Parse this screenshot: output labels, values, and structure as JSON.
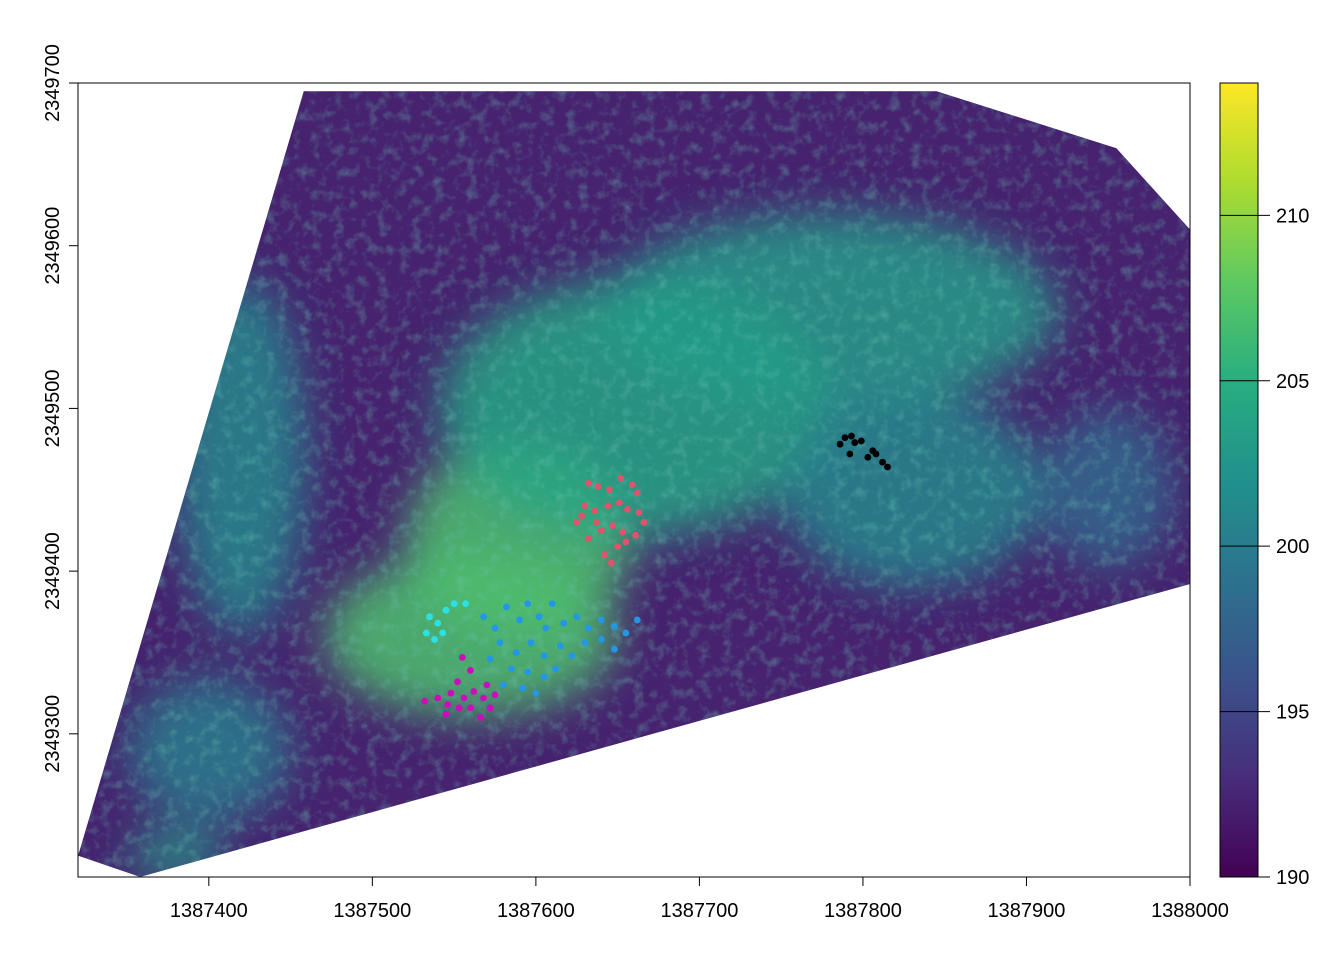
{
  "chart_data": {
    "type": "heatmap",
    "title": "",
    "xlabel": "",
    "ylabel": "",
    "xlim": [
      1387320,
      1388000
    ],
    "ylim": [
      2349212,
      2349700
    ],
    "x_ticks": [
      1387400,
      1387500,
      1387600,
      1387700,
      1387800,
      1387900,
      1388000
    ],
    "x_tick_labels": [
      "1387400",
      "1387500",
      "1387600",
      "1387700",
      "1387800",
      "1387900",
      "1388000"
    ],
    "y_ticks": [
      2349300,
      2349400,
      2349500,
      2349600,
      2349700
    ],
    "y_tick_labels": [
      "2349300",
      "2349400",
      "2349500",
      "2349600",
      "2349700"
    ],
    "grid": false,
    "colorbar": {
      "range": [
        190,
        214
      ],
      "ticks": [
        190,
        195,
        200,
        205,
        210
      ],
      "tick_labels": [
        "190",
        "195",
        "200",
        "205",
        "210"
      ],
      "colormap": "viridis",
      "placement": "right"
    },
    "raster_extent_polygon": [
      [
        1387320,
        2349225
      ],
      [
        1387458,
        2349695
      ],
      [
        1387845,
        2349695
      ],
      [
        1387955,
        2349660
      ],
      [
        1388000,
        2349610
      ],
      [
        1388000,
        2349392
      ],
      [
        1387358,
        2349212
      ]
    ],
    "height_regions": [
      {
        "x": 1387590,
        "y": 2349420,
        "rx": 70,
        "ry": 60,
        "value": 207
      },
      {
        "x": 1387560,
        "y": 2349360,
        "rx": 90,
        "ry": 50,
        "value": 207
      },
      {
        "x": 1387660,
        "y": 2349500,
        "rx": 120,
        "ry": 80,
        "value": 204
      },
      {
        "x": 1387780,
        "y": 2349560,
        "rx": 140,
        "ry": 60,
        "value": 203
      },
      {
        "x": 1387420,
        "y": 2349470,
        "rx": 40,
        "ry": 110,
        "value": 201
      },
      {
        "x": 1387830,
        "y": 2349450,
        "rx": 80,
        "ry": 60,
        "value": 201
      },
      {
        "x": 1387950,
        "y": 2349450,
        "rx": 40,
        "ry": 50,
        "value": 198
      },
      {
        "x": 1387400,
        "y": 2349290,
        "rx": 50,
        "ry": 45,
        "value": 200
      },
      {
        "x": 1387380,
        "y": 2349225,
        "rx": 30,
        "ry": 15,
        "value": 203
      }
    ],
    "series": [
      {
        "color": "#000000",
        "points": [
          [
            1387786,
            2349478
          ],
          [
            1387789,
            2349482
          ],
          [
            1387793,
            2349483
          ],
          [
            1387795,
            2349479
          ],
          [
            1387799,
            2349480
          ],
          [
            1387792,
            2349472
          ],
          [
            1387803,
            2349470
          ],
          [
            1387806,
            2349474
          ],
          [
            1387808,
            2349472
          ],
          [
            1387812,
            2349467
          ],
          [
            1387815,
            2349464
          ]
        ]
      },
      {
        "color": "#DF536B",
        "points": [
          [
            1387632,
            2349454
          ],
          [
            1387638,
            2349452
          ],
          [
            1387645,
            2349450
          ],
          [
            1387652,
            2349457
          ],
          [
            1387659,
            2349453
          ],
          [
            1387662,
            2349448
          ],
          [
            1387630,
            2349440
          ],
          [
            1387628,
            2349434
          ],
          [
            1387636,
            2349437
          ],
          [
            1387644,
            2349440
          ],
          [
            1387651,
            2349442
          ],
          [
            1387656,
            2349438
          ],
          [
            1387663,
            2349436
          ],
          [
            1387666,
            2349430
          ],
          [
            1387640,
            2349425
          ],
          [
            1387647,
            2349428
          ],
          [
            1387653,
            2349424
          ],
          [
            1387632,
            2349420
          ],
          [
            1387625,
            2349430
          ],
          [
            1387642,
            2349410
          ],
          [
            1387650,
            2349415
          ],
          [
            1387646,
            2349405
          ],
          [
            1387655,
            2349418
          ],
          [
            1387661,
            2349422
          ],
          [
            1387637,
            2349430
          ]
        ]
      },
      {
        "color": "#2297E6",
        "points": [
          [
            1387568,
            2349372
          ],
          [
            1387575,
            2349365
          ],
          [
            1387582,
            2349378
          ],
          [
            1387590,
            2349370
          ],
          [
            1387595,
            2349380
          ],
          [
            1387602,
            2349372
          ],
          [
            1387610,
            2349380
          ],
          [
            1387617,
            2349368
          ],
          [
            1387625,
            2349372
          ],
          [
            1387632,
            2349365
          ],
          [
            1387640,
            2349370
          ],
          [
            1387648,
            2349366
          ],
          [
            1387655,
            2349362
          ],
          [
            1387662,
            2349370
          ],
          [
            1387578,
            2349356
          ],
          [
            1387588,
            2349350
          ],
          [
            1387597,
            2349356
          ],
          [
            1387605,
            2349348
          ],
          [
            1387615,
            2349354
          ],
          [
            1387622,
            2349348
          ],
          [
            1387630,
            2349356
          ],
          [
            1387640,
            2349358
          ],
          [
            1387648,
            2349352
          ],
          [
            1387585,
            2349340
          ],
          [
            1387595,
            2349338
          ],
          [
            1387605,
            2349335
          ],
          [
            1387612,
            2349340
          ],
          [
            1387580,
            2349330
          ],
          [
            1387592,
            2349328
          ],
          [
            1387600,
            2349325
          ],
          [
            1387572,
            2349346
          ],
          [
            1387606,
            2349365
          ]
        ]
      },
      {
        "color": "#28E2E5",
        "points": [
          [
            1387535,
            2349372
          ],
          [
            1387540,
            2349368
          ],
          [
            1387545,
            2349376
          ],
          [
            1387550,
            2349380
          ],
          [
            1387557,
            2349380
          ],
          [
            1387533,
            2349362
          ],
          [
            1387538,
            2349358
          ],
          [
            1387543,
            2349362
          ]
        ]
      },
      {
        "color": "#CD0BBC",
        "points": [
          [
            1387555,
            2349347
          ],
          [
            1387560,
            2349339
          ],
          [
            1387552,
            2349332
          ],
          [
            1387548,
            2349325
          ],
          [
            1387556,
            2349322
          ],
          [
            1387562,
            2349326
          ],
          [
            1387568,
            2349322
          ],
          [
            1387572,
            2349316
          ],
          [
            1387566,
            2349310
          ],
          [
            1387560,
            2349316
          ],
          [
            1387553,
            2349316
          ],
          [
            1387546,
            2349318
          ],
          [
            1387540,
            2349322
          ],
          [
            1387532,
            2349320
          ],
          [
            1387545,
            2349312
          ],
          [
            1387570,
            2349330
          ],
          [
            1387575,
            2349324
          ]
        ]
      }
    ]
  }
}
